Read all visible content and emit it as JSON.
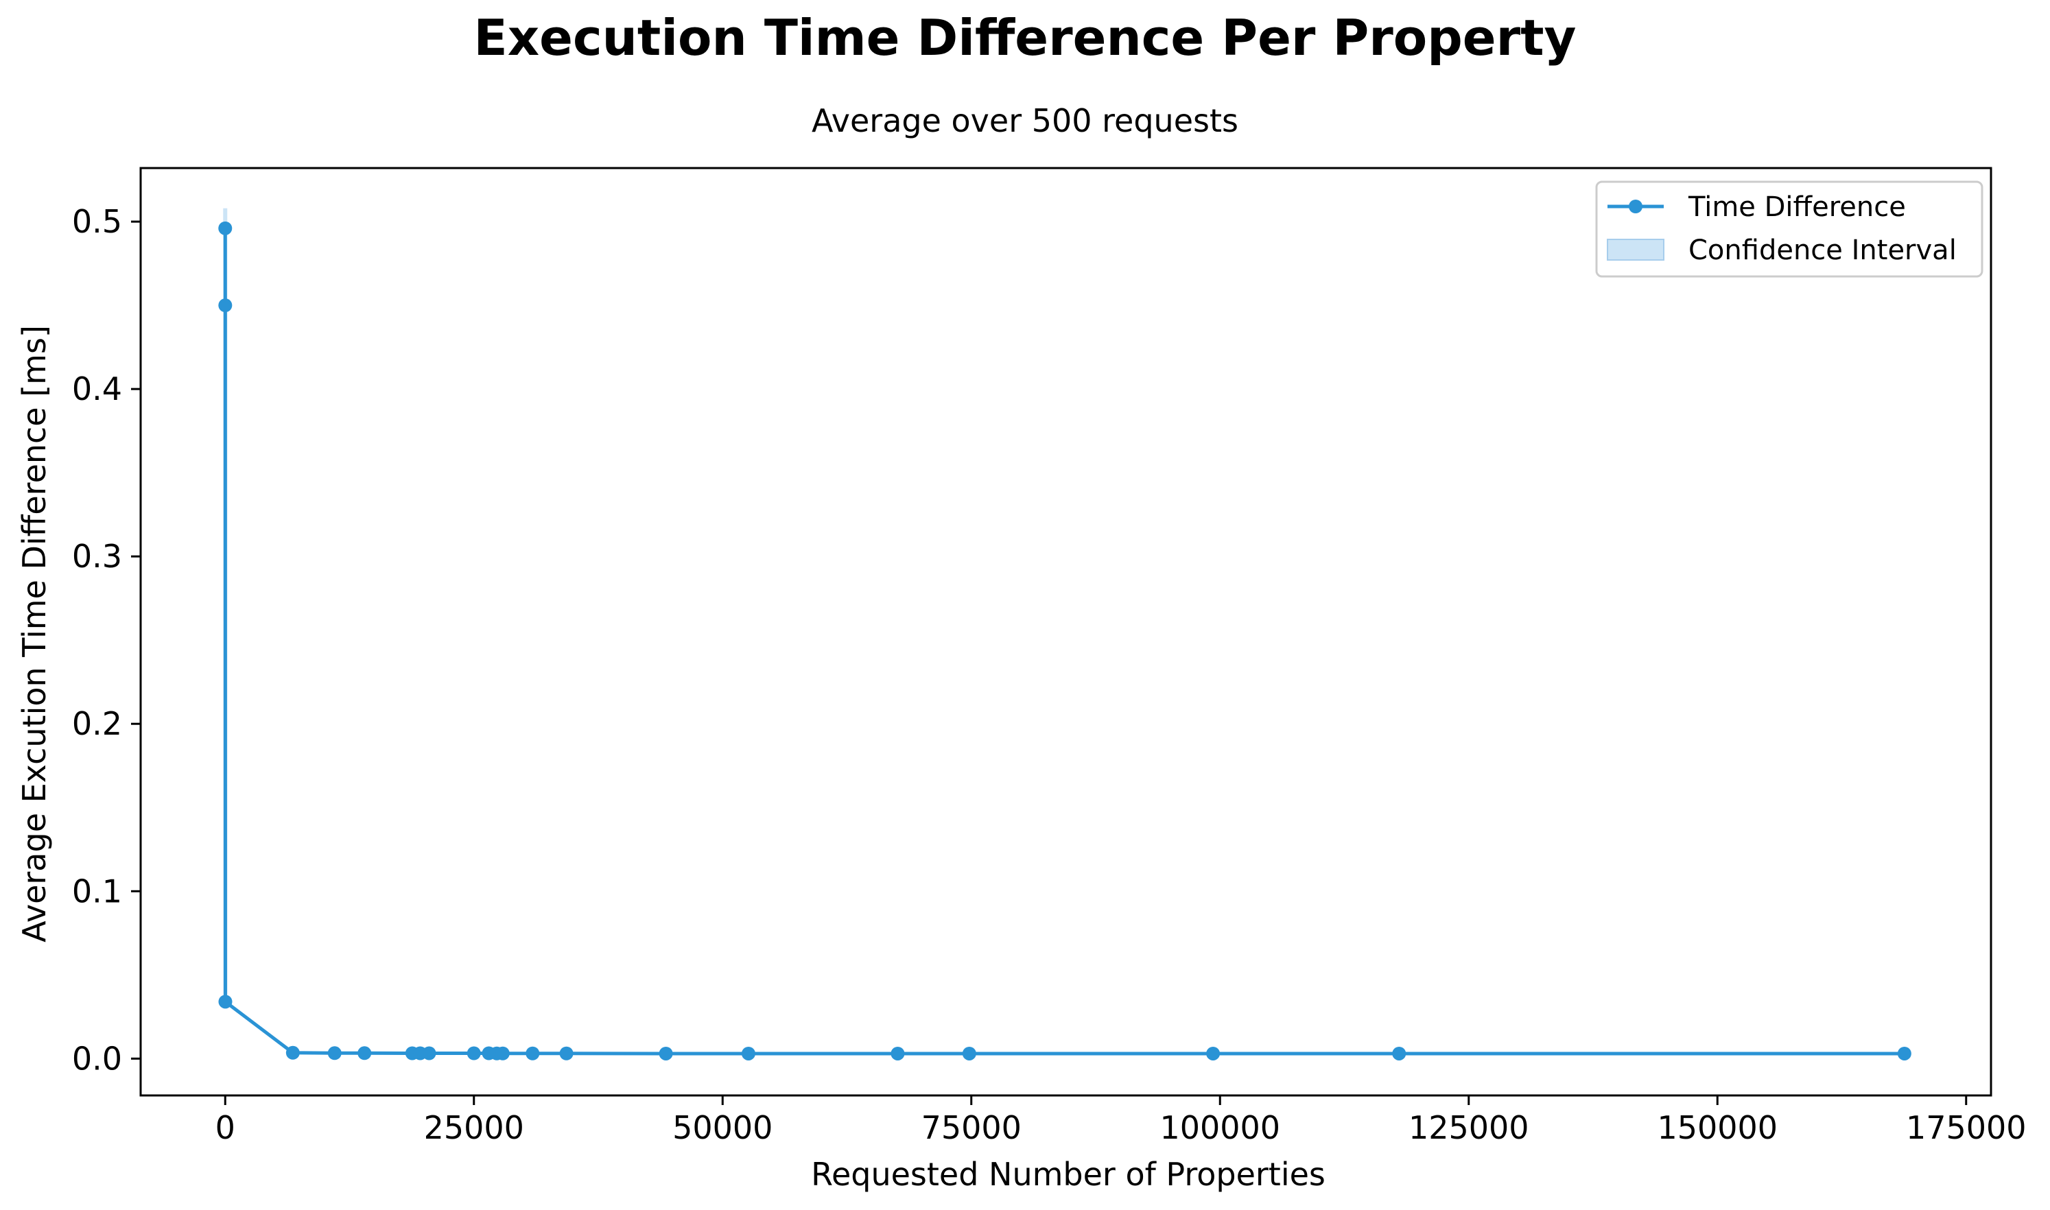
{
  "chart_data": {
    "type": "line",
    "title": "Execution Time Difference Per Property",
    "subtitle": "Average over 500 requests",
    "xlabel": "Requested Number of Properties",
    "ylabel": "Average Excution Time Difference [ms]",
    "xlim": [
      -8500,
      177500
    ],
    "ylim": [
      -0.022,
      0.532
    ],
    "xticks": [
      0,
      25000,
      50000,
      75000,
      100000,
      125000,
      150000,
      175000
    ],
    "yticks": [
      0.0,
      0.1,
      0.2,
      0.3,
      0.4,
      0.5
    ],
    "xtick_labels": [
      "0",
      "25000",
      "50000",
      "75000",
      "100000",
      "125000",
      "150000",
      "175000"
    ],
    "ytick_labels": [
      "0.0",
      "0.1",
      "0.2",
      "0.3",
      "0.4",
      "0.5"
    ],
    "grid": false,
    "legend_position": "top-right",
    "series": [
      {
        "name": "Time Difference",
        "color": "#2a93d5",
        "x": [
          1,
          5,
          15,
          6800,
          11000,
          14000,
          18800,
          19600,
          20500,
          25000,
          26500,
          27300,
          27900,
          30900,
          34300,
          44300,
          52600,
          67600,
          74800,
          99300,
          118000,
          168800
        ],
        "y": [
          0.496,
          0.45,
          0.034,
          0.0035,
          0.0033,
          0.0033,
          0.0032,
          0.0032,
          0.0032,
          0.0032,
          0.0032,
          0.0031,
          0.0031,
          0.0031,
          0.0031,
          0.003,
          0.003,
          0.003,
          0.003,
          0.003,
          0.003,
          0.003
        ]
      }
    ],
    "confidence_interval": {
      "name": "Confidence Interval",
      "color": "#cce4f6",
      "x": [
        1,
        5,
        15
      ],
      "lower": [
        0.482,
        0.44,
        0.03
      ],
      "upper": [
        0.508,
        0.46,
        0.038
      ]
    }
  }
}
